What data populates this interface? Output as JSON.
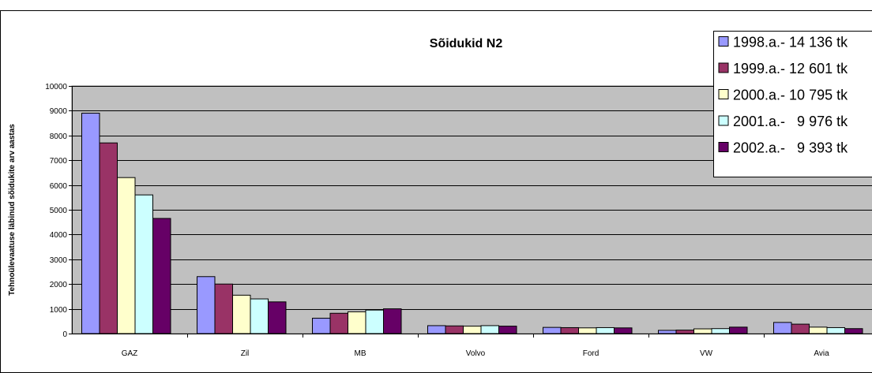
{
  "chart_data": {
    "type": "bar",
    "title": "Sõidukid N2",
    "xlabel": "",
    "ylabel": "Tehnoülevaatuse läbinud sõidukite arv aastas",
    "categories": [
      "GAZ",
      "Zil",
      "MB",
      "Volvo",
      "Ford",
      "VW",
      "Avia"
    ],
    "ylim": [
      0,
      10000
    ],
    "yticks": [
      0,
      1000,
      2000,
      3000,
      4000,
      5000,
      6000,
      7000,
      8000,
      9000,
      10000
    ],
    "grid": true,
    "legend_position": "top-right",
    "series": [
      {
        "name": "1998.a.- 14 136 tk",
        "color": "#9999ff",
        "values": [
          8900,
          2300,
          620,
          320,
          250,
          130,
          450
        ]
      },
      {
        "name": "1999.a.- 12 601 tk",
        "color": "#993366",
        "values": [
          7700,
          2000,
          820,
          310,
          240,
          140,
          380
        ]
      },
      {
        "name": "2000.a.- 10 795 tk",
        "color": "#ffffcc",
        "values": [
          6300,
          1550,
          880,
          300,
          230,
          190,
          260
        ]
      },
      {
        "name": "2001.a.-   9 976 tk",
        "color": "#ccffff",
        "values": [
          5600,
          1400,
          950,
          320,
          240,
          200,
          240
        ]
      },
      {
        "name": "2002.a.-   9 393 tk",
        "color": "#660066",
        "values": [
          4650,
          1280,
          1000,
          300,
          230,
          260,
          200
        ]
      }
    ],
    "plot_background": "#c0c0c0"
  }
}
